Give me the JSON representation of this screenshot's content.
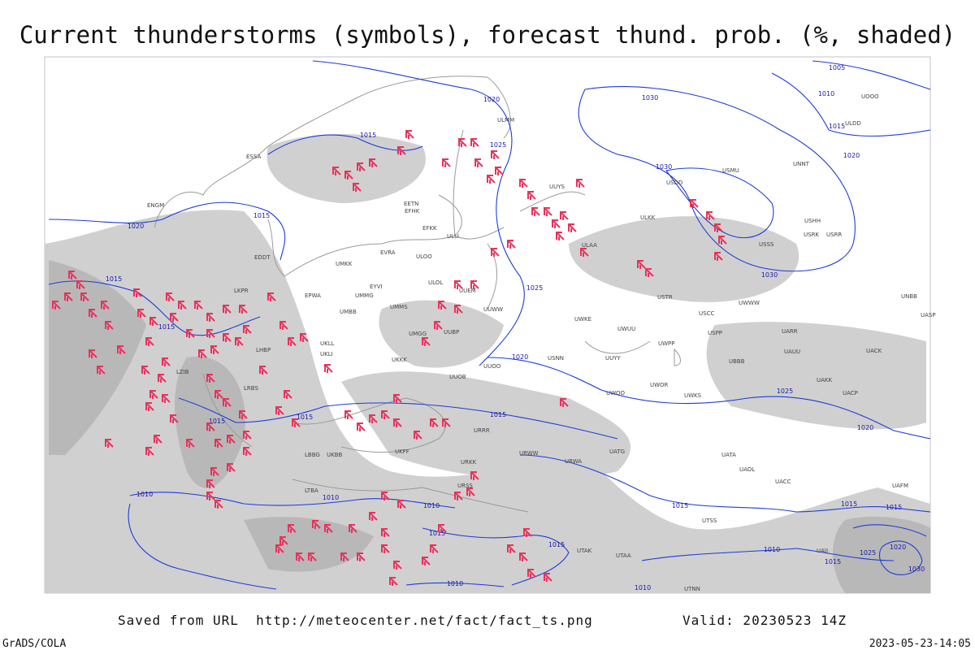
{
  "header": {
    "title": "Current thunderstorms (symbols), forecast thund. prob. (%, shaded)"
  },
  "isobar_labels": [
    "1005",
    "1010",
    "1015",
    "1020",
    "1030",
    "1020",
    "1025",
    "1015",
    "1020",
    "1015",
    "1030",
    "1030",
    "1025",
    "1015",
    "1015",
    "1020",
    "1025",
    "1020",
    "1015",
    "1015",
    "1015",
    "1010",
    "1010",
    "1010",
    "1015",
    "1015",
    "1015",
    "1015",
    "1020",
    "1025",
    "1030",
    "1015",
    "1010",
    "1015",
    "1010",
    "1010"
  ],
  "station_labels": [
    "ULOO",
    "ULOL",
    "ULLI",
    "EVRA",
    "EETN",
    "EFHK",
    "UMKK",
    "EYVI",
    "UMMG",
    "UMBB",
    "UMMS",
    "UMGG",
    "UUBP",
    "UUEM",
    "UUWW",
    "UUOO",
    "UKKK",
    "UUOB",
    "UKLL",
    "UKLI",
    "UKFF",
    "UKBB",
    "URSS",
    "URRR",
    "URKK",
    "URWW",
    "URWA",
    "UATG",
    "UATA",
    "UAOL",
    "UACC",
    "UAKK",
    "UACP",
    "UARR",
    "UWOO",
    "UWOR",
    "UWKS",
    "UWKE",
    "UWUU",
    "UWPP",
    "USNN",
    "USRR",
    "USRK",
    "USHH",
    "USSS",
    "USCC",
    "USPP",
    "USTR",
    "UWWW",
    "UUYY",
    "ULKK",
    "ULAA",
    "UUYS",
    "USDD",
    "USMU",
    "UNNT",
    "UNBB",
    "UASP",
    "UACK",
    "UAUU",
    "UBBB",
    "UTAK",
    "UTAA",
    "UTNN",
    "UTSS",
    "UAII",
    "UAFM",
    "LBBG",
    "LTBA",
    "LKPR",
    "LHBP",
    "LRBS",
    "LZIB",
    "EPWA",
    "EDDT",
    "ENGM",
    "ESSA",
    "EFKK",
    "ULMM",
    "UOOO",
    "ULDD"
  ],
  "footer": {
    "source": "Saved from URL  http://meteocenter.net/fact/fact_ts.png",
    "valid": "Valid: 20230523 14Z",
    "software": "GrADS/COLA",
    "timestamp": "2023-05-23-14:05"
  }
}
